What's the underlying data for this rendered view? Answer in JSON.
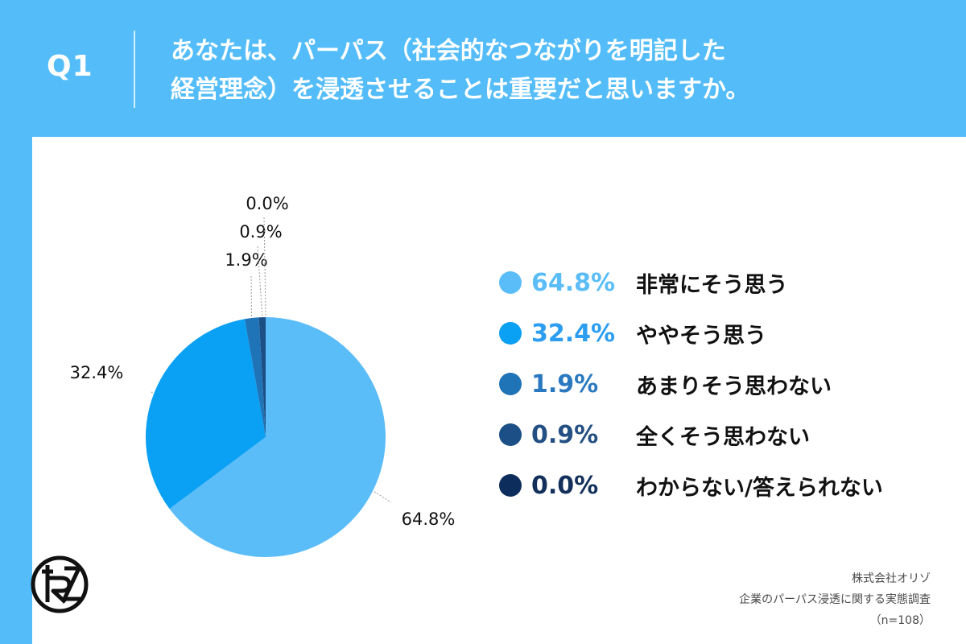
{
  "question": {
    "number": "Q1",
    "title_line1": "あなたは、パーパス（社会的なつながりを明記した",
    "title_line2": "経営理念）を浸透させることは重要だと思いますか。"
  },
  "chart_data": {
    "type": "pie",
    "categories": [
      "非常にそう思う",
      "ややそう思う",
      "あまりそう思わない",
      "全くそう思わない",
      "わからない/答えられない"
    ],
    "values": [
      64.8,
      32.4,
      1.9,
      0.9,
      0.0
    ],
    "labels": [
      "64.8%",
      "32.4%",
      "1.9%",
      "0.9%",
      "0.0%"
    ],
    "colors": [
      "#5bbdf8",
      "#0aa0f3",
      "#1f73b7",
      "#1b4f86",
      "#0d2e5c"
    ],
    "legend_text_colors": [
      "#5bbdf8",
      "#2c9df0",
      "#2a78bf",
      "#234f82",
      "#12305a"
    ],
    "legend_placement": "right",
    "start": "top",
    "direction": "clockwise"
  },
  "logo": {
    "icon": "rz-logo-icon"
  },
  "source": {
    "company": "株式会社オリゾ",
    "survey": "企業のパーパス浸透に関する実態調査",
    "sample": "（n=108）"
  }
}
